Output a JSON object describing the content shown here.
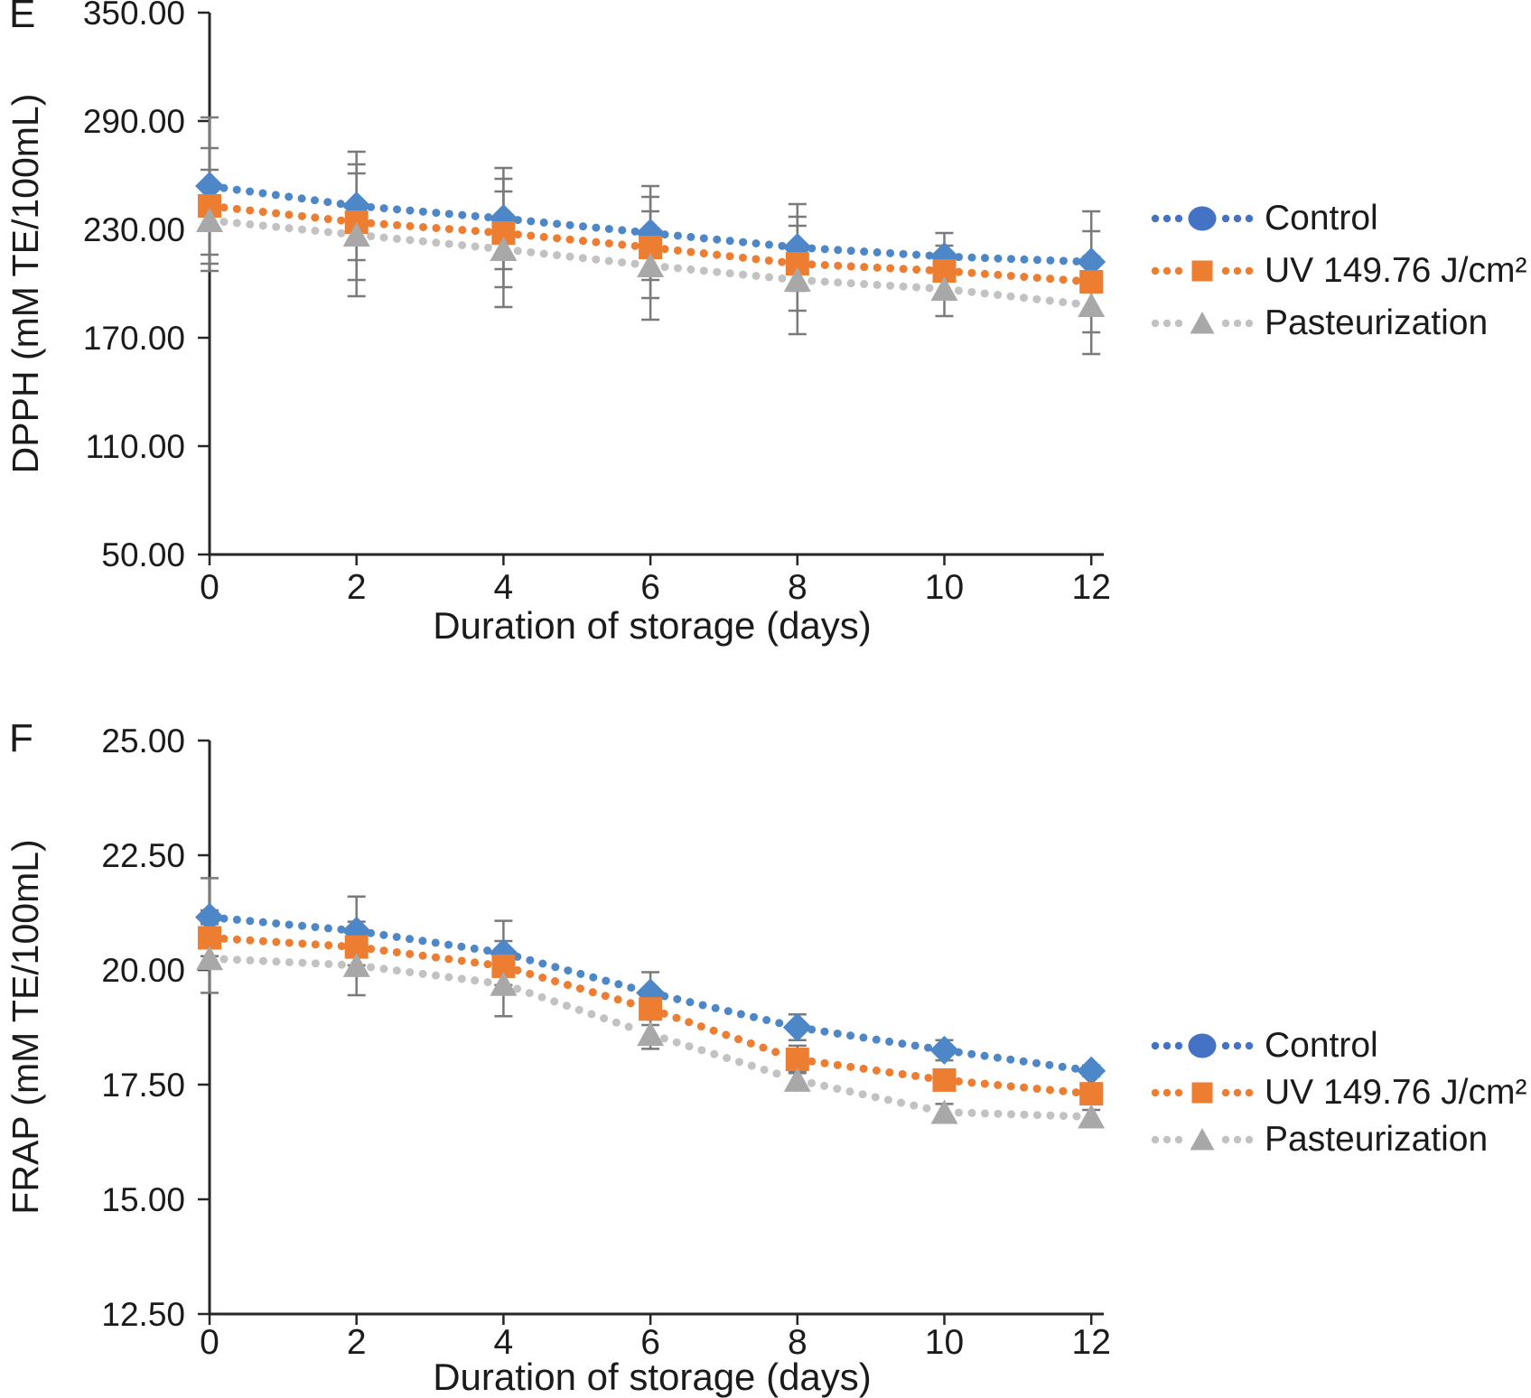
{
  "figure": {
    "background": "#ffffff",
    "text_color": "#1b1b1b",
    "axis_color": "#262626",
    "error_bar_color": "#7a7a7a"
  },
  "series_meta": [
    {
      "key": "control",
      "marker": "diamond",
      "color": "#4e87c7",
      "line_color": "#4e87c7",
      "legend_marker": "circle",
      "legend_color": "#4472c4",
      "legend_line_color": "#4472c4"
    },
    {
      "key": "uv",
      "marker": "square",
      "color": "#ed7d31",
      "line_color": "#ed7d31",
      "legend_marker": "square",
      "legend_color": "#ed7d31",
      "legend_line_color": "#ed7d31"
    },
    {
      "key": "pasteurization",
      "marker": "triangle",
      "color": "#a8a8a8",
      "line_color": "#c2c2c2",
      "legend_marker": "triangle",
      "legend_color": "#a8a8a8",
      "legend_line_color": "#c2c2c2"
    }
  ],
  "chart_data": [
    {
      "type": "line",
      "panel_label": "E",
      "ylabel": "DPPH (mM TE/100mL)",
      "xlabel": "Duration of storage (days)",
      "x": [
        0,
        2,
        4,
        6,
        8,
        10,
        12
      ],
      "x_ticks": [
        "0",
        "2",
        "4",
        "6",
        "8",
        "10",
        "12"
      ],
      "y_tick_values": [
        350,
        290,
        230,
        170,
        110,
        50
      ],
      "y_ticks": [
        "350.00",
        "290.00",
        "230.00",
        "170.00",
        "110.00",
        "50.00"
      ],
      "ylim": [
        50,
        350
      ],
      "grid": false,
      "legend_position": "right",
      "error_bars": true,
      "line_style": "dotted",
      "series": [
        {
          "name": "Control",
          "values": [
            254,
            243,
            236,
            228,
            220,
            215,
            212
          ],
          "errors": [
            38,
            30,
            28,
            26,
            24,
            13,
            28
          ]
        },
        {
          "name": "UV 149.76 J/cm²",
          "values": [
            243,
            234,
            228,
            220,
            211,
            207,
            201
          ],
          "errors": [
            32,
            32,
            30,
            28,
            26,
            14,
            28
          ]
        },
        {
          "name": "Pasteurization",
          "values": [
            235,
            227,
            219,
            210,
            202,
            197,
            188
          ],
          "errors": [
            28,
            34,
            32,
            30,
            30,
            15,
            27
          ]
        }
      ]
    },
    {
      "type": "line",
      "panel_label": "F",
      "ylabel": "FRAP (mM TE/100mL)",
      "xlabel": "Duration of storage (days)",
      "x": [
        0,
        2,
        4,
        6,
        8,
        10,
        12
      ],
      "x_ticks": [
        "0",
        "2",
        "4",
        "6",
        "8",
        "10",
        "12"
      ],
      "y_tick_values": [
        25,
        22.5,
        20,
        17.5,
        15,
        12.5
      ],
      "y_ticks": [
        "25.00",
        "22.50",
        "20.00",
        "17.50",
        "15.00",
        "12.50"
      ],
      "ylim": [
        12.5,
        25
      ],
      "grid": false,
      "legend_position": "right",
      "error_bars": true,
      "line_style": "dotted",
      "series": [
        {
          "name": "Control",
          "values": [
            21.15,
            20.85,
            20.37,
            19.5,
            18.75,
            18.25,
            17.8
          ],
          "errors": [
            0.85,
            0.75,
            0.7,
            0.45,
            0.28,
            0.22,
            0.12
          ]
        },
        {
          "name": "UV 149.76 J/cm²",
          "values": [
            20.7,
            20.5,
            20.08,
            19.15,
            18.05,
            17.6,
            17.3
          ],
          "errors": [
            0.6,
            0.55,
            0.55,
            0.35,
            0.3,
            0.2,
            0.12
          ]
        },
        {
          "name": "Pasteurization",
          "values": [
            20.25,
            20.1,
            19.69,
            18.6,
            17.6,
            16.9,
            16.8
          ],
          "errors": [
            0.75,
            0.65,
            0.7,
            0.32,
            0.2,
            0.18,
            0.15
          ]
        }
      ]
    }
  ]
}
